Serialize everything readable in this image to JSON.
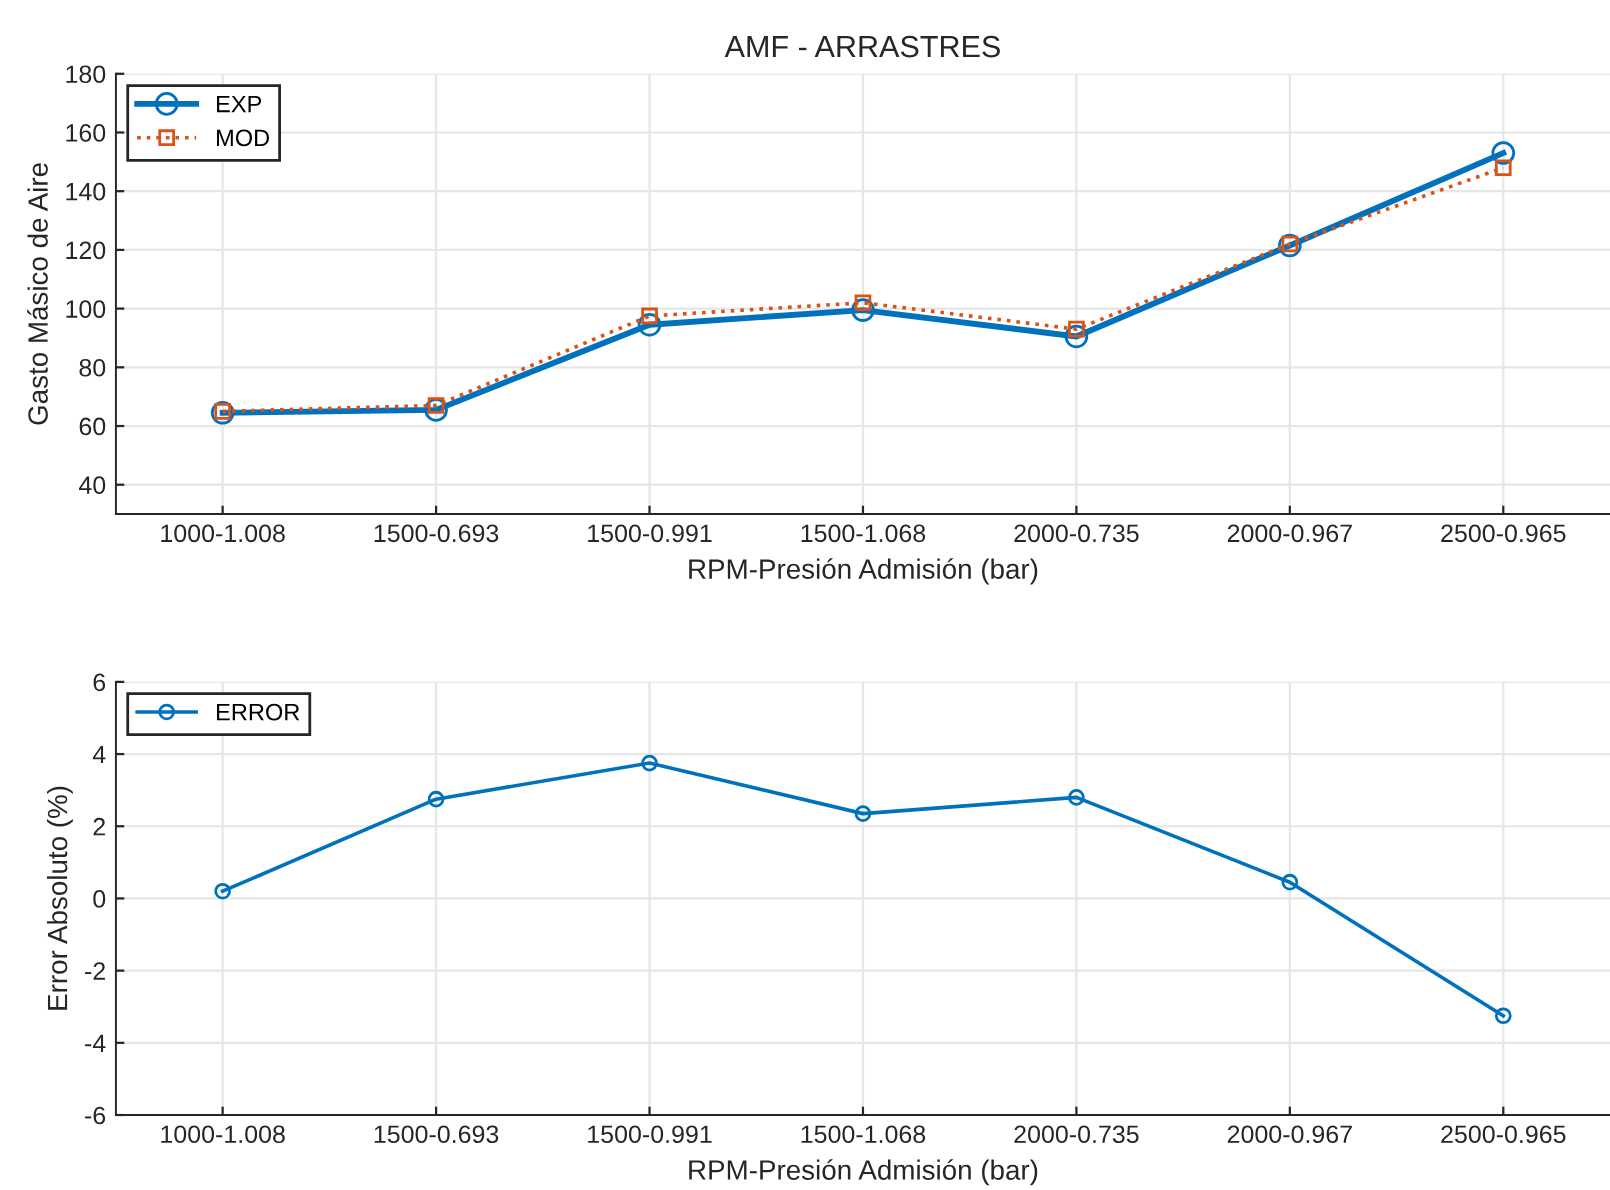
{
  "chart_data": [
    {
      "type": "line",
      "title": "AMF - ARRASTRES",
      "xlabel": "RPM-Presión Admisión (bar)",
      "ylabel": "Gasto Másico de Aire",
      "categories": [
        "1000-1.008",
        "1500-0.693",
        "1500-0.991",
        "1500-1.068",
        "2000-0.735",
        "2000-0.967",
        "2500-0.965"
      ],
      "series": [
        {
          "name": "EXP",
          "color": "#0072bd",
          "marker": "circle",
          "line_style": "solid",
          "values": [
            64.5,
            65.5,
            94.5,
            99.5,
            90.5,
            121.5,
            153
          ]
        },
        {
          "name": "MOD",
          "color": "#d95319",
          "marker": "square",
          "line_style": "dotted",
          "values": [
            65,
            67,
            97.5,
            102,
            93,
            122,
            148
          ]
        }
      ],
      "ylim": [
        30,
        180
      ],
      "yticks": [
        40,
        60,
        80,
        100,
        120,
        140,
        160,
        180
      ],
      "grid": true,
      "legend": "top left"
    },
    {
      "type": "line",
      "xlabel": "RPM-Presión Admisión (bar)",
      "ylabel": "Error Absoluto (%)",
      "categories": [
        "1000-1.008",
        "1500-0.693",
        "1500-0.991",
        "1500-1.068",
        "2000-0.735",
        "2000-0.967",
        "2500-0.965"
      ],
      "series": [
        {
          "name": "ERROR",
          "color": "#0072bd",
          "marker": "circle",
          "line_style": "solid",
          "values": [
            0.2,
            2.75,
            3.75,
            2.35,
            2.8,
            0.45,
            -3.25
          ]
        }
      ],
      "ylim": [
        -6,
        6
      ],
      "yticks": [
        -6,
        -4,
        -2,
        0,
        2,
        4,
        6
      ],
      "grid": true,
      "legend": "top left"
    }
  ]
}
